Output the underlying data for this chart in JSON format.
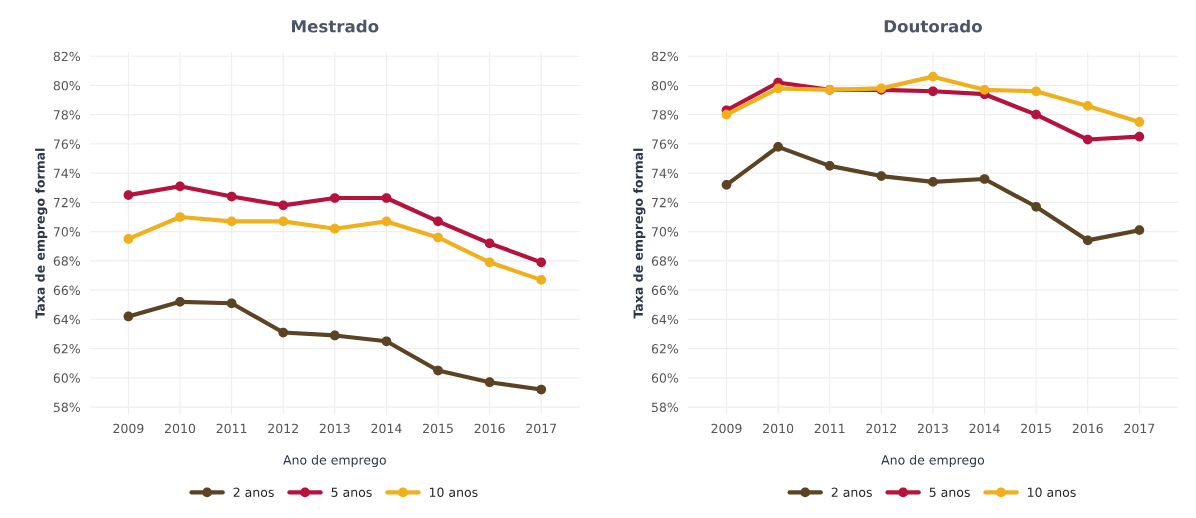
{
  "chart_data": [
    {
      "type": "line",
      "title": "Mestrado",
      "xlabel": "Ano de emprego",
      "ylabel": "Taxa de emprego formal",
      "categories": [
        "2009",
        "2010",
        "2011",
        "2012",
        "2013",
        "2014",
        "2015",
        "2016",
        "2017"
      ],
      "series": [
        {
          "name": "2 anos",
          "color": "#5c4324",
          "values": [
            64.2,
            65.2,
            65.1,
            63.1,
            62.9,
            62.5,
            60.5,
            59.7,
            59.2
          ]
        },
        {
          "name": "5 anos",
          "color": "#b5123e",
          "values": [
            72.5,
            73.1,
            72.4,
            71.8,
            72.3,
            72.3,
            70.7,
            69.2,
            67.9
          ]
        },
        {
          "name": "10 anos",
          "color": "#f0b01e",
          "values": [
            69.5,
            71.0,
            70.7,
            70.7,
            70.2,
            70.7,
            69.6,
            67.9,
            66.7
          ]
        }
      ],
      "ylim": [
        57.5,
        82.3
      ],
      "yticks": [
        {
          "value": 58,
          "label": "58%"
        },
        {
          "value": 60,
          "label": "60%"
        },
        {
          "value": 62,
          "label": "62%"
        },
        {
          "value": 64,
          "label": "64%"
        },
        {
          "value": 66,
          "label": "66%"
        },
        {
          "value": 68,
          "label": "68%"
        },
        {
          "value": 70,
          "label": "70%"
        },
        {
          "value": 72,
          "label": "72%"
        },
        {
          "value": 74,
          "label": "74%"
        },
        {
          "value": 76,
          "label": "76%"
        },
        {
          "value": 78,
          "label": "78%"
        },
        {
          "value": 80,
          "label": "80%"
        },
        {
          "value": 82,
          "label": "82%"
        }
      ],
      "grid": true,
      "legend": "bottom",
      "marker": "circle",
      "line_style": "solid"
    },
    {
      "type": "line",
      "title": "Doutorado",
      "xlabel": "Ano de emprego",
      "ylabel": "Taxa de emprego formal",
      "categories": [
        "2009",
        "2010",
        "2011",
        "2012",
        "2013",
        "2014",
        "2015",
        "2016",
        "2017"
      ],
      "series": [
        {
          "name": "2 anos",
          "color": "#5c4324",
          "values": [
            73.2,
            75.8,
            74.5,
            73.8,
            73.4,
            73.6,
            71.7,
            69.4,
            70.1
          ]
        },
        {
          "name": "5 anos",
          "color": "#b5123e",
          "values": [
            78.3,
            80.2,
            79.7,
            79.7,
            79.6,
            79.4,
            78.0,
            76.3,
            76.5
          ]
        },
        {
          "name": "10 anos",
          "color": "#f0b01e",
          "values": [
            78.0,
            79.8,
            79.7,
            79.8,
            80.6,
            79.7,
            79.6,
            78.6,
            77.5
          ]
        }
      ],
      "ylim": [
        57.5,
        82.3
      ],
      "yticks": [
        {
          "value": 58,
          "label": "58%"
        },
        {
          "value": 60,
          "label": "60%"
        },
        {
          "value": 62,
          "label": "62%"
        },
        {
          "value": 64,
          "label": "64%"
        },
        {
          "value": 66,
          "label": "66%"
        },
        {
          "value": 68,
          "label": "68%"
        },
        {
          "value": 70,
          "label": "70%"
        },
        {
          "value": 72,
          "label": "72%"
        },
        {
          "value": 74,
          "label": "74%"
        },
        {
          "value": 76,
          "label": "76%"
        },
        {
          "value": 78,
          "label": "78%"
        },
        {
          "value": 80,
          "label": "80%"
        },
        {
          "value": 82,
          "label": "82%"
        }
      ],
      "grid": true,
      "legend": "bottom",
      "marker": "circle",
      "line_style": "solid"
    }
  ]
}
